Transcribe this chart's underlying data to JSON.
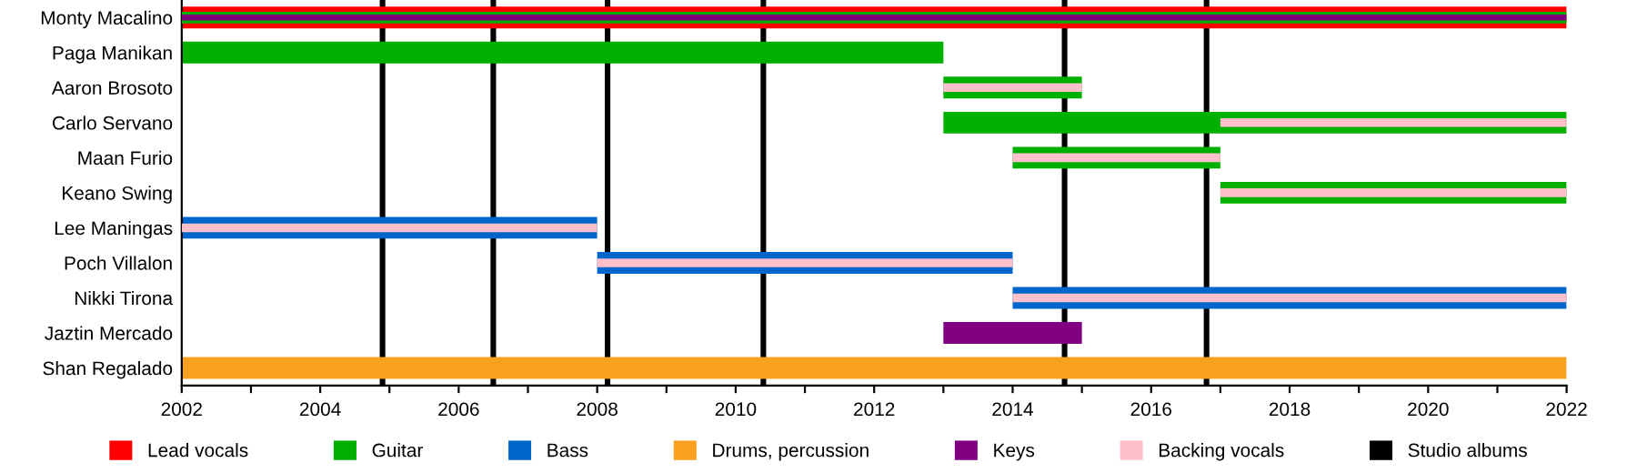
{
  "chart_data": {
    "type": "bar",
    "orientation": "horizontal",
    "categories": [
      "Monty Macalino",
      "Paga Manikan",
      "Aaron Brosoto",
      "Carlo Servano",
      "Maan Furio",
      "Keano Swing",
      "Lee Maningas",
      "Poch Villalon",
      "Nikki Tirona",
      "Jaztin Mercado",
      "Shan Regalado"
    ],
    "series": [
      {
        "name": "Lead vocals",
        "color": "#ff0000",
        "base": [
          2002,
          null,
          null,
          null,
          null,
          null,
          null,
          null,
          null,
          null,
          null
        ],
        "values": [
          20,
          null,
          null,
          null,
          null,
          null,
          null,
          null,
          null,
          null,
          null
        ]
      },
      {
        "name": "Guitar",
        "color": "#00b000",
        "base": [
          2002,
          2002,
          2013,
          2013,
          2014,
          2017,
          null,
          null,
          null,
          null,
          null
        ],
        "values": [
          20,
          11,
          2,
          9,
          3,
          5,
          null,
          null,
          null,
          null,
          null
        ]
      },
      {
        "name": "Bass",
        "color": "#0066cc",
        "base": [
          null,
          null,
          null,
          null,
          null,
          null,
          2002,
          2008,
          2014,
          null,
          null
        ],
        "values": [
          null,
          null,
          null,
          null,
          null,
          null,
          6,
          6,
          8,
          null,
          null
        ]
      },
      {
        "name": "Drums, percussion",
        "color": "#f8a020",
        "base": [
          null,
          null,
          null,
          null,
          null,
          null,
          null,
          null,
          null,
          null,
          2002
        ],
        "values": [
          null,
          null,
          null,
          null,
          null,
          null,
          null,
          null,
          null,
          null,
          20
        ]
      },
      {
        "name": "Keys",
        "color": "#800080",
        "base": [
          2002,
          null,
          null,
          null,
          null,
          null,
          null,
          null,
          null,
          2013,
          null
        ],
        "values": [
          20,
          null,
          null,
          null,
          null,
          null,
          null,
          null,
          null,
          2,
          null
        ]
      },
      {
        "name": "Backing vocals",
        "color": "#ffc0cb",
        "base": [
          null,
          null,
          2013,
          2017,
          2014,
          2017,
          2002,
          2008,
          2014,
          null,
          null
        ],
        "values": [
          null,
          null,
          2,
          5,
          3,
          5,
          6,
          6,
          8,
          null,
          null
        ]
      }
    ],
    "ref_lines": [
      {
        "axis": "x",
        "value": 2004.9,
        "label": "Studio albums",
        "color": "#000000"
      },
      {
        "axis": "x",
        "value": 2006.5,
        "color": "#000000"
      },
      {
        "axis": "x",
        "value": 2008.15,
        "color": "#000000"
      },
      {
        "axis": "x",
        "value": 2010.4,
        "color": "#000000"
      },
      {
        "axis": "x",
        "value": 2014.75,
        "color": "#000000"
      },
      {
        "axis": "x",
        "value": 2016.8,
        "color": "#000000"
      }
    ],
    "xlim": [
      2002,
      2022
    ],
    "xticks": [
      2002,
      {
        "value": 2003,
        "label": null
      },
      2004,
      {
        "value": 2005,
        "label": null
      },
      2006,
      {
        "value": 2007,
        "label": null
      },
      2008,
      {
        "value": 2009,
        "label": null
      },
      2010,
      {
        "value": 2011,
        "label": null
      },
      2012,
      {
        "value": 2013,
        "label": null
      },
      2014,
      {
        "value": 2015,
        "label": null
      },
      2016,
      {
        "value": 2017,
        "label": null
      },
      2018,
      {
        "value": 2019,
        "label": null
      },
      2020,
      {
        "value": 2021,
        "label": null
      },
      2022
    ],
    "grid": false,
    "legend": "bottom"
  }
}
